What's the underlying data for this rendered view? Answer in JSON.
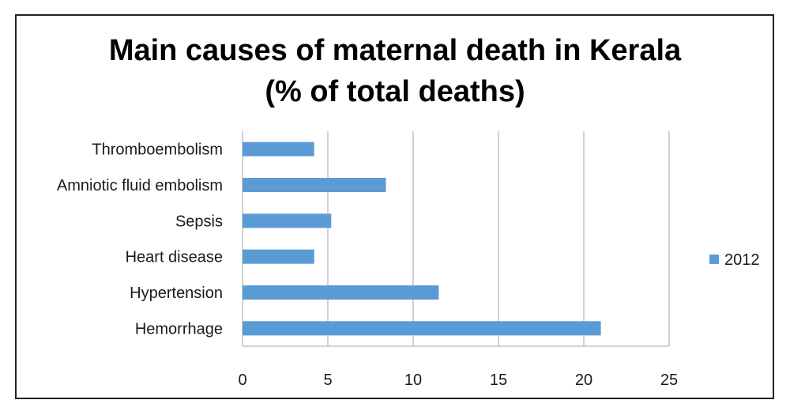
{
  "chart_data": {
    "type": "bar",
    "orientation": "horizontal",
    "title_lines": [
      "Main causes of maternal death in Kerala",
      "(% of total deaths)"
    ],
    "categories": [
      "Thromboembolism",
      "Amniotic fluid embolism",
      "Sepsis",
      "Heart disease",
      "Hypertension",
      "Hemorrhage"
    ],
    "series": [
      {
        "name": "2012",
        "values": [
          4.2,
          8.4,
          5.2,
          4.2,
          11.5,
          21.0
        ],
        "color": "#5b9bd5"
      }
    ],
    "xlim": [
      0,
      25
    ],
    "xticks": [
      "0",
      "5",
      "10",
      "15",
      "20",
      "25"
    ],
    "grid": true,
    "legend_position": "right"
  }
}
